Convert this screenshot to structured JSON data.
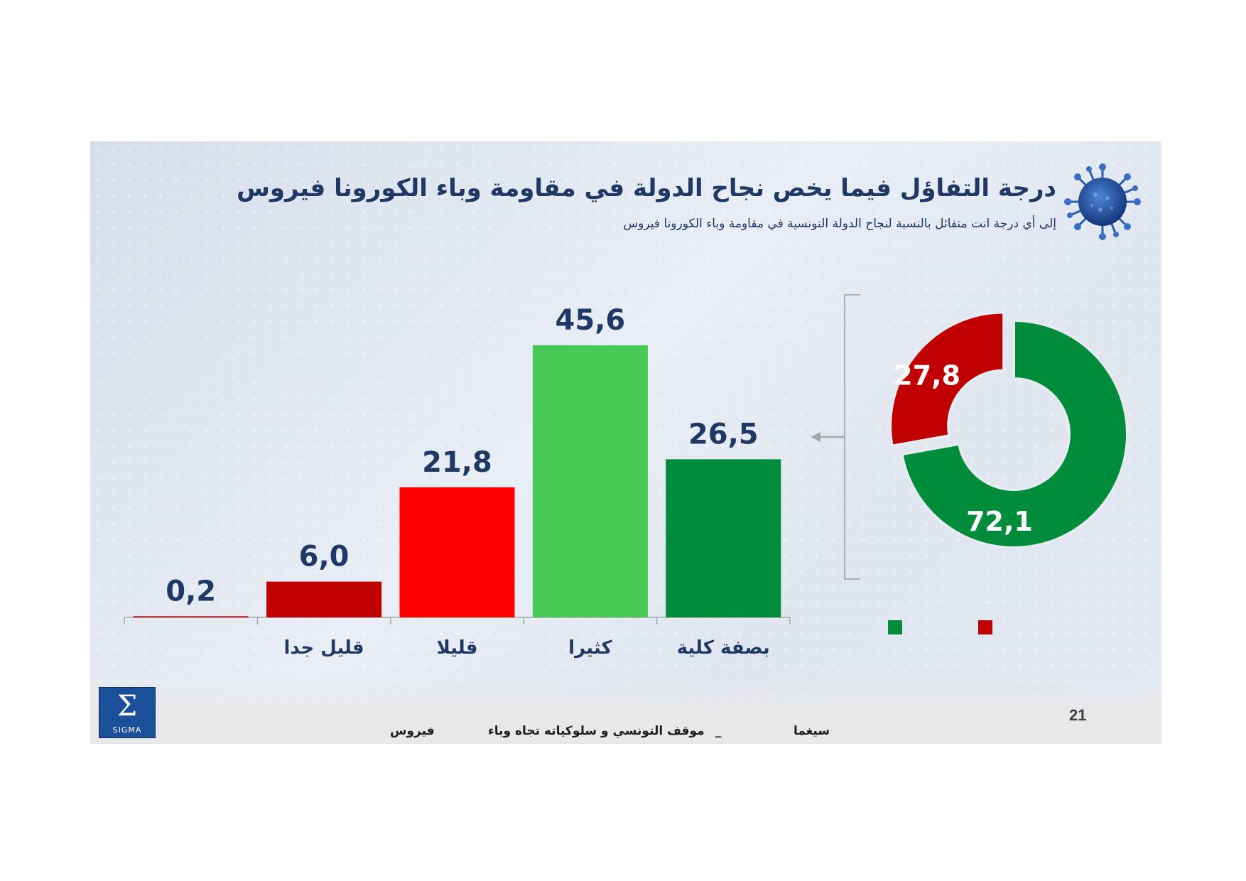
{
  "header": {
    "title": "درجة التفاؤل فيما يخص نجاح الدولة في مقاومة وباء الكورونا فيروس",
    "subtitle": "إلى أي درجة انت متفائل بالنسبة لنجاح الدولة التونسية في مقاومة وباء الكورونا فيروس"
  },
  "footer": {
    "brand": "سيغما",
    "dash": "_",
    "topic": "موقف التونسي و سلوكياته تجاه وباء",
    "topic_end": "فيروس",
    "page_number": "21",
    "logo_text": "SIGMA"
  },
  "colors": {
    "title": "#1f3864",
    "dark_red": "#c00000",
    "red": "#ff0000",
    "light_green": "#48c855",
    "dark_green": "#008c3a"
  },
  "chart_data": [
    {
      "type": "bar",
      "categories": [
        "",
        "قليل جدا",
        "قليلا",
        "كثيرا",
        "بصفة كلية"
      ],
      "values": [
        0.2,
        6.0,
        21.8,
        45.6,
        26.5
      ],
      "value_labels": [
        "0,2",
        "6,0",
        "21,8",
        "45,6",
        "26,5"
      ],
      "bar_colors": [
        "#c00000",
        "#c00000",
        "#ff0000",
        "#48c855",
        "#008c3a"
      ],
      "ylim": [
        0,
        50
      ],
      "grid": false
    },
    {
      "type": "pie",
      "style": "donut",
      "slices": [
        {
          "value": 72.1,
          "label": "72,1",
          "color": "#008c3a"
        },
        {
          "value": 27.8,
          "label": "27,8",
          "color": "#c00000"
        }
      ],
      "legend": [
        {
          "color": "#008c3a",
          "label": ""
        },
        {
          "color": "#c00000",
          "label": ""
        }
      ],
      "legend_placement": "bottom"
    }
  ]
}
